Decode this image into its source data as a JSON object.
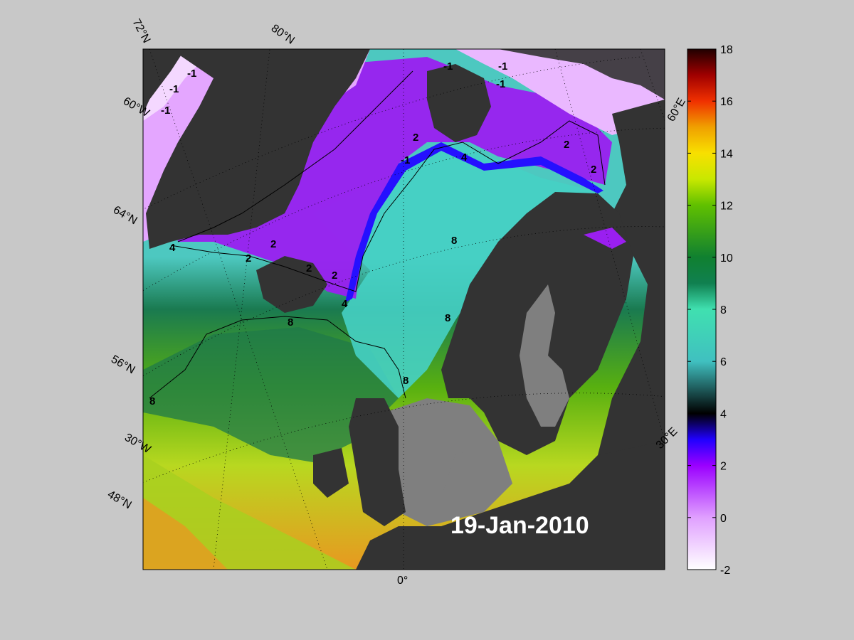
{
  "map": {
    "date_label": "19-Jan-2010",
    "lat_labels": [
      "72°N",
      "80°N",
      "64°N",
      "56°N",
      "48°N"
    ],
    "lon_labels": [
      "60°W",
      "30°W",
      "0°",
      "30°E",
      "60°E"
    ],
    "contour_labels": [
      "-1",
      "-1",
      "-1",
      "-1",
      "-1",
      "-1",
      "2",
      "2",
      "2",
      "2",
      "2",
      "2",
      "2",
      "4",
      "4",
      "4",
      "-1",
      "8",
      "8",
      "8",
      "8",
      "8"
    ],
    "colors": {
      "land": "#333333",
      "land_shallow": "#7f7f7f",
      "background": "#c8c8c8"
    }
  },
  "colorbar": {
    "ticks": [
      "18",
      "16",
      "14",
      "12",
      "10",
      "8",
      "6",
      "4",
      "2",
      "0",
      "-2"
    ],
    "range": [
      -2,
      18
    ]
  }
}
